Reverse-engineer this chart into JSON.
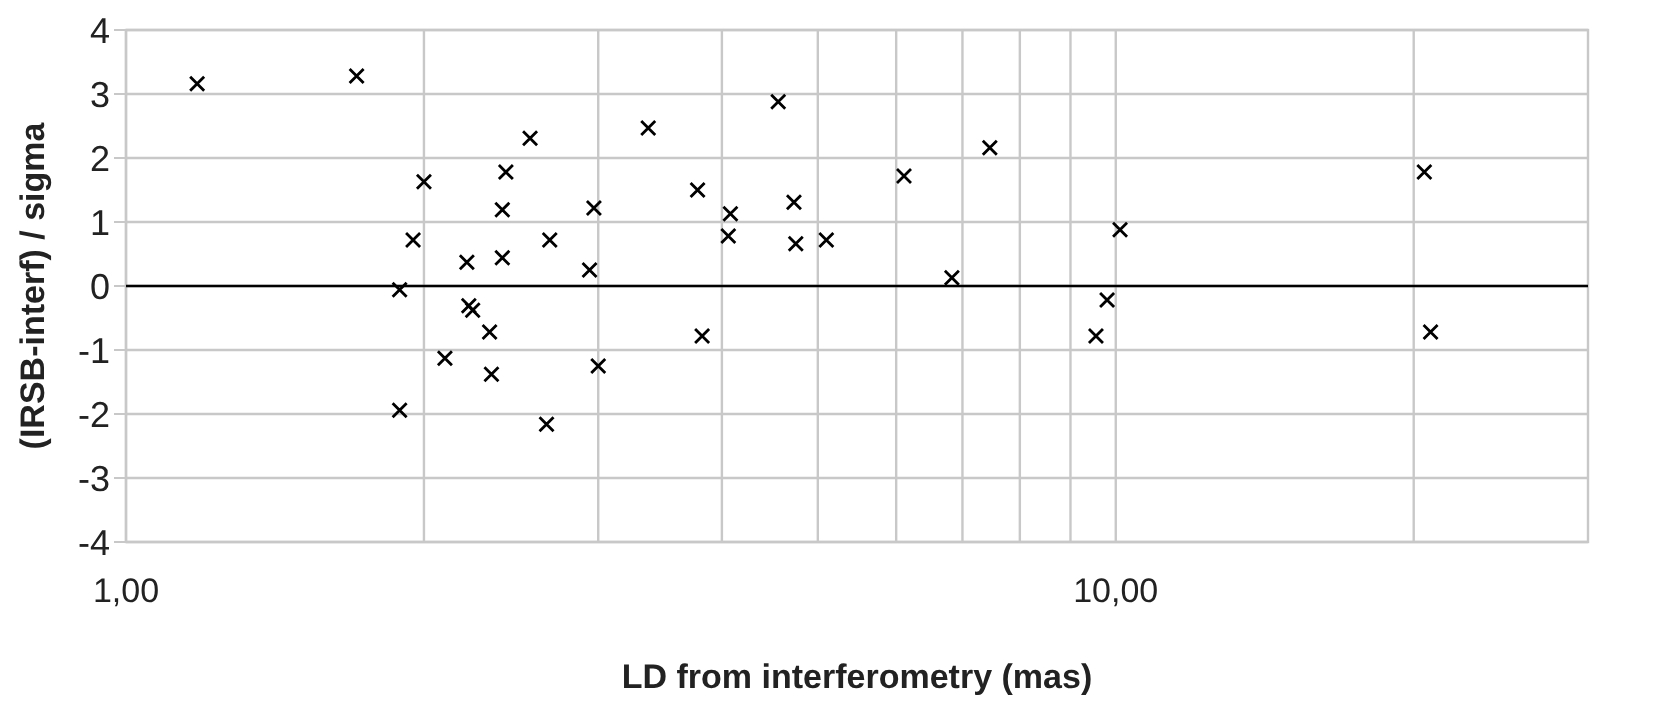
{
  "chart_data": {
    "type": "scatter",
    "xlabel": "LD from interferometry (mas)",
    "ylabel": "(IRSB-interf) / sigma",
    "x": [
      1.18,
      1.71,
      1.89,
      1.89,
      1.95,
      2.0,
      2.1,
      2.21,
      2.22,
      2.24,
      2.33,
      2.34,
      2.4,
      2.4,
      2.42,
      2.56,
      2.66,
      2.68,
      2.94,
      2.97,
      3.0,
      3.37,
      3.78,
      3.82,
      4.06,
      4.08,
      4.56,
      4.73,
      4.75,
      5.1,
      6.11,
      6.83,
      7.46,
      9.55,
      9.8,
      10.1,
      20.5,
      20.8
    ],
    "values": [
      3.16,
      3.28,
      -0.06,
      -1.94,
      0.72,
      1.63,
      -1.13,
      0.37,
      -0.31,
      -0.38,
      -0.72,
      -1.38,
      1.19,
      0.44,
      1.78,
      2.31,
      -2.16,
      0.72,
      0.25,
      1.22,
      -1.25,
      2.47,
      1.5,
      -0.78,
      0.78,
      1.13,
      2.88,
      1.31,
      0.66,
      0.72,
      1.72,
      0.13,
      2.16,
      -0.78,
      -0.22,
      0.88,
      1.78,
      -0.72
    ],
    "color": "#000000",
    "marker": "cross",
    "log": "x",
    "grid": true,
    "xlim": [
      1,
      30
    ],
    "xticks": [
      {
        "value": 1,
        "label": "1,00"
      },
      {
        "value": 2,
        "label": null
      },
      {
        "value": 3,
        "label": null
      },
      {
        "value": 4,
        "label": null
      },
      {
        "value": 5,
        "label": null
      },
      {
        "value": 6,
        "label": null
      },
      {
        "value": 7,
        "label": null
      },
      {
        "value": 8,
        "label": null
      },
      {
        "value": 9,
        "label": null
      },
      {
        "value": 10,
        "label": "10,00"
      },
      {
        "value": 20,
        "label": null
      }
    ],
    "ylim": [
      -4,
      4
    ],
    "yticks": [
      -4,
      -3,
      -2,
      -1,
      0,
      1,
      2,
      3,
      4
    ],
    "ref_lines": [
      {
        "axis": "y",
        "value": 0,
        "color": "#000000"
      }
    ]
  }
}
